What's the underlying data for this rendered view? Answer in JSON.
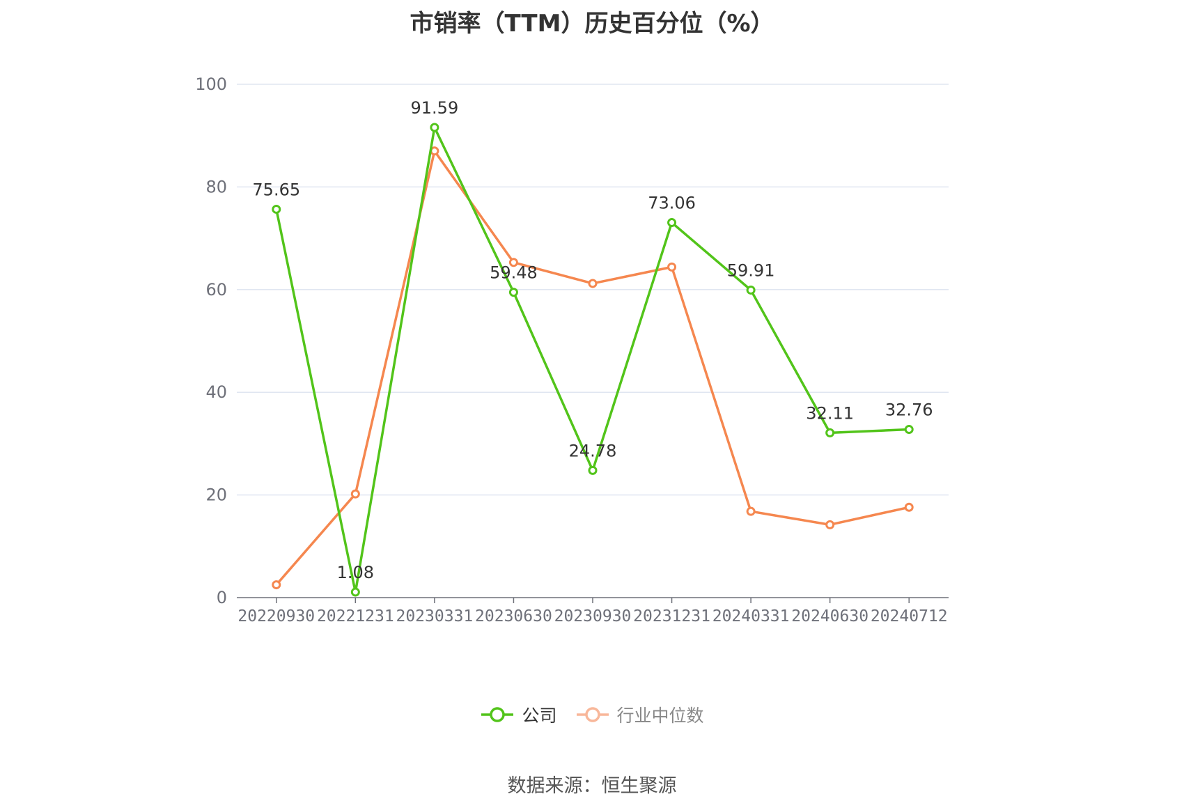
{
  "chart_data": {
    "type": "line",
    "title": "市销率（TTM）历史百分位（%）",
    "categories": [
      "20220930",
      "20221231",
      "20230331",
      "20230630",
      "20230930",
      "20231231",
      "20240331",
      "20240630",
      "20240712"
    ],
    "series": [
      {
        "name": "公司",
        "color": "#52c41a",
        "values": [
          75.65,
          1.08,
          91.59,
          59.48,
          24.78,
          73.06,
          59.91,
          32.11,
          32.76
        ],
        "labels": true
      },
      {
        "name": "行业中位数",
        "color": "#f5874f",
        "values": [
          2.5,
          20.2,
          87.0,
          65.3,
          61.2,
          64.4,
          16.8,
          14.2,
          17.6
        ],
        "labels": false
      }
    ],
    "ylim": [
      0,
      100
    ],
    "yticks": [
      0,
      20,
      40,
      60,
      80,
      100
    ],
    "grid": true,
    "legend_position": "bottom"
  },
  "source": "数据来源：恒生聚源",
  "colors": {
    "axis": "#6e7079",
    "grid": "#e0e6f1",
    "tick_text": "#6e7079",
    "label_text": "#333333",
    "legend_inactive_text": "#888888"
  }
}
